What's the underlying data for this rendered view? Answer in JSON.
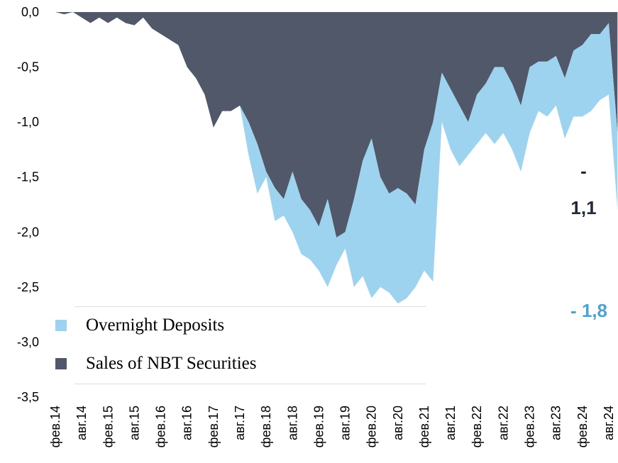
{
  "chart_data": {
    "type": "stacked_area",
    "categories": [
      "фев.14",
      null,
      null,
      "авг.14",
      null,
      null,
      "фев.15",
      null,
      null,
      "авг.15",
      null,
      null,
      "фев.16",
      null,
      null,
      "авг.16",
      null,
      null,
      "фев.17",
      null,
      null,
      "авг.17",
      null,
      null,
      "фев.18",
      null,
      null,
      "авг.18",
      null,
      null,
      "фев.19",
      null,
      null,
      "авг.19",
      null,
      null,
      "фев.20",
      null,
      null,
      "авг.20",
      null,
      null,
      "фев.21",
      null,
      null,
      "авг.21",
      null,
      null,
      "фев.22",
      null,
      null,
      "авг.22",
      null,
      null,
      "фев.23",
      null,
      null,
      "авг.23",
      null,
      null,
      "фев.24",
      null,
      null,
      "авг.24",
      null
    ],
    "series": [
      {
        "name": "Overnight Deposits",
        "color": "#9dd3ef",
        "values": [
          0,
          0,
          0,
          0,
          0,
          0,
          0,
          0,
          0,
          0,
          0,
          0,
          0,
          0,
          0,
          0,
          0,
          0,
          0,
          0,
          0,
          0,
          -0.3,
          -0.45,
          -0.05,
          -0.3,
          -0.15,
          -0.55,
          -0.5,
          -0.45,
          -0.4,
          -0.8,
          -0.25,
          -0.15,
          -0.8,
          -1.05,
          -1.45,
          -1.0,
          -0.9,
          -1.05,
          -0.95,
          -0.75,
          -1.1,
          -1.45,
          -0.45,
          -0.55,
          -0.55,
          -0.3,
          -0.45,
          -0.45,
          -0.7,
          -0.6,
          -0.6,
          -0.6,
          -0.6,
          -0.45,
          -0.5,
          -0.45,
          -0.55,
          -0.6,
          -0.65,
          -0.7,
          -0.6,
          -0.65,
          -0.7
        ]
      },
      {
        "name": "Sales of NBT Securities",
        "color": "#505869",
        "values": [
          0,
          -0.02,
          0,
          -0.05,
          -0.1,
          -0.05,
          -0.1,
          -0.05,
          -0.1,
          -0.12,
          -0.05,
          -0.15,
          -0.2,
          -0.25,
          -0.3,
          -0.5,
          -0.6,
          -0.75,
          -1.05,
          -0.9,
          -0.9,
          -0.85,
          -1.0,
          -1.2,
          -1.45,
          -1.6,
          -1.7,
          -1.45,
          -1.7,
          -1.8,
          -1.95,
          -1.7,
          -2.05,
          -2.0,
          -1.7,
          -1.35,
          -1.15,
          -1.5,
          -1.65,
          -1.6,
          -1.65,
          -1.75,
          -1.25,
          -1.0,
          -0.55,
          -0.7,
          -0.85,
          -1.0,
          -0.75,
          -0.65,
          -0.5,
          -0.5,
          -0.65,
          -0.85,
          -0.5,
          -0.45,
          -0.45,
          -0.4,
          -0.6,
          -0.35,
          -0.3,
          -0.2,
          -0.2,
          -0.1,
          -1.1
        ]
      }
    ],
    "stack_order": [
      1,
      0
    ],
    "ylim": [
      -3.5,
      0
    ],
    "yticks": [
      {
        "value": 0,
        "label": "0,0"
      },
      {
        "value": -0.5,
        "label": "-0,5"
      },
      {
        "value": -1,
        "label": "-1,0"
      },
      {
        "value": -1.5,
        "label": "-1,5"
      },
      {
        "value": -2,
        "label": "-2,0"
      },
      {
        "value": -2.5,
        "label": "-2,5"
      },
      {
        "value": -3,
        "label": "-3,0"
      },
      {
        "value": -3.5,
        "label": "-3,5"
      }
    ],
    "annotations": [
      {
        "text": "- 1,1",
        "color": "#222a3a"
      },
      {
        "text": "- 1,8",
        "color": "#4aa3d3"
      }
    ]
  }
}
